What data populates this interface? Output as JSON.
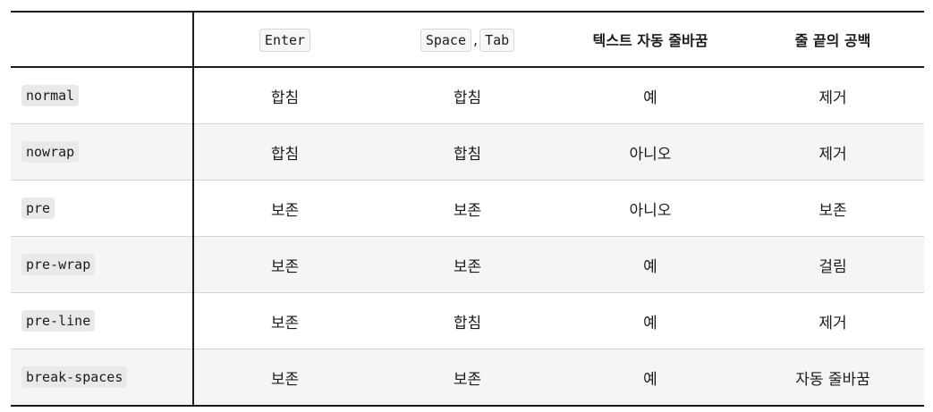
{
  "header": {
    "col0": "",
    "col1_code": "Enter",
    "col2_code_a": "Space",
    "col2_sep": ",",
    "col2_code_b": "Tab",
    "col3": "텍스트 자동 줄바꿈",
    "col4": "줄 끝의 공백"
  },
  "rows": [
    {
      "value": "normal",
      "newline": "합침",
      "space_tab": "합침",
      "wrap": "예",
      "trailing": "제거"
    },
    {
      "value": "nowrap",
      "newline": "합침",
      "space_tab": "합침",
      "wrap": "아니오",
      "trailing": "제거"
    },
    {
      "value": "pre",
      "newline": "보존",
      "space_tab": "보존",
      "wrap": "아니오",
      "trailing": "보존"
    },
    {
      "value": "pre-wrap",
      "newline": "보존",
      "space_tab": "보존",
      "wrap": "예",
      "trailing": "걸림"
    },
    {
      "value": "pre-line",
      "newline": "보존",
      "space_tab": "합침",
      "wrap": "예",
      "trailing": "제거"
    },
    {
      "value": "break-spaces",
      "newline": "보존",
      "space_tab": "보존",
      "wrap": "예",
      "trailing": "자동 줄바꿈"
    }
  ]
}
